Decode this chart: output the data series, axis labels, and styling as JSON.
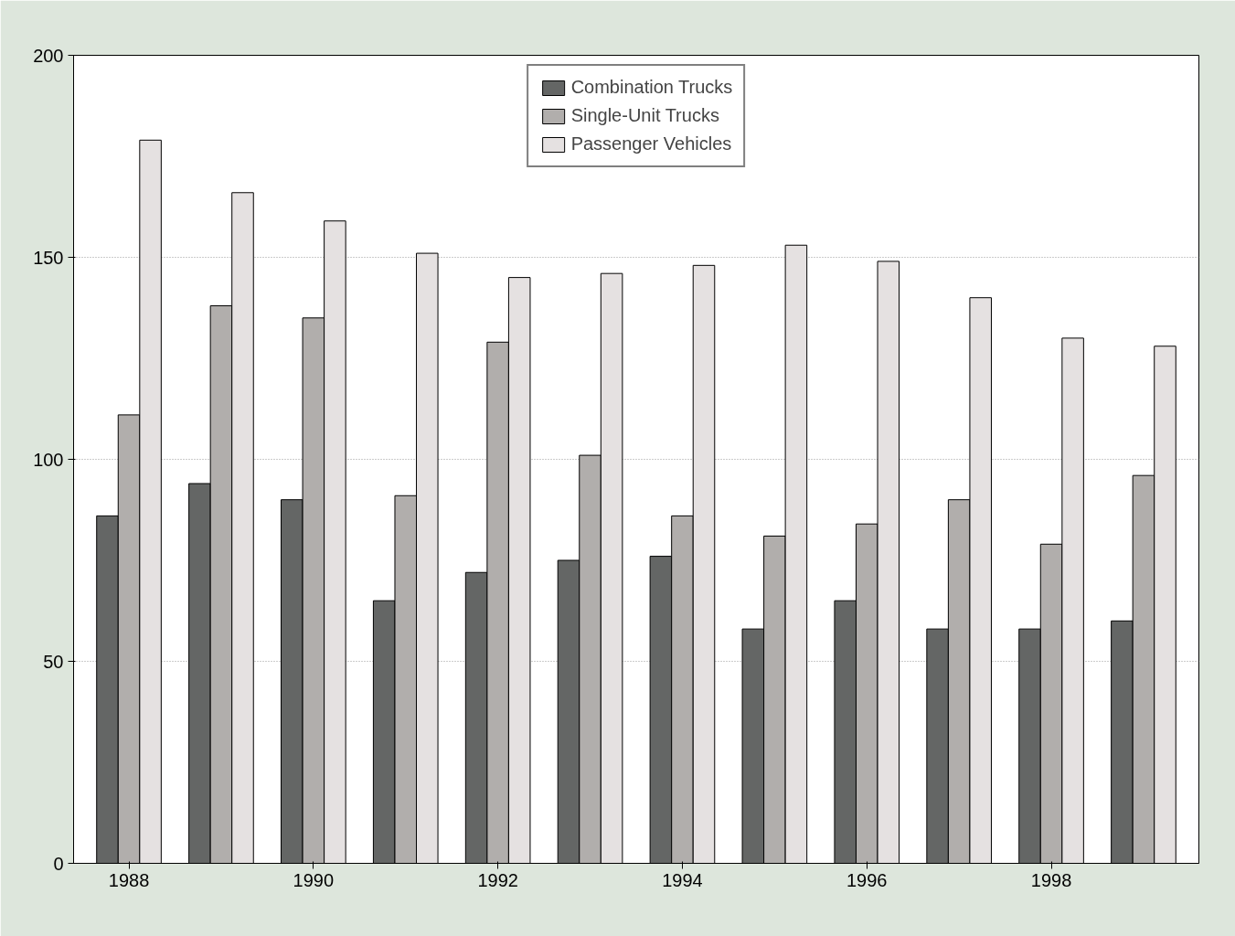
{
  "chart_data": {
    "type": "bar",
    "categories": [
      "1988",
      null,
      "1990",
      null,
      "1992",
      null,
      "1994",
      null,
      "1996",
      null,
      "1998",
      null
    ],
    "series": [
      {
        "name": "Combination Trucks",
        "color": "#646665",
        "values": [
          86,
          94,
          90,
          65,
          72,
          75,
          76,
          58,
          65,
          58,
          58,
          60
        ]
      },
      {
        "name": "Single-Unit Trucks",
        "color": "#b1aeac",
        "values": [
          111,
          138,
          135,
          91,
          129,
          101,
          86,
          81,
          84,
          90,
          79,
          96
        ]
      },
      {
        "name": "Passenger Vehicles",
        "color": "#e5e1e1",
        "values": [
          179,
          166,
          159,
          151,
          145,
          146,
          148,
          153,
          149,
          140,
          130,
          128
        ]
      }
    ],
    "ylim": [
      0,
      200
    ],
    "yticks": [
      0,
      50,
      100,
      150,
      200
    ],
    "grid": "y",
    "legend": "top"
  }
}
